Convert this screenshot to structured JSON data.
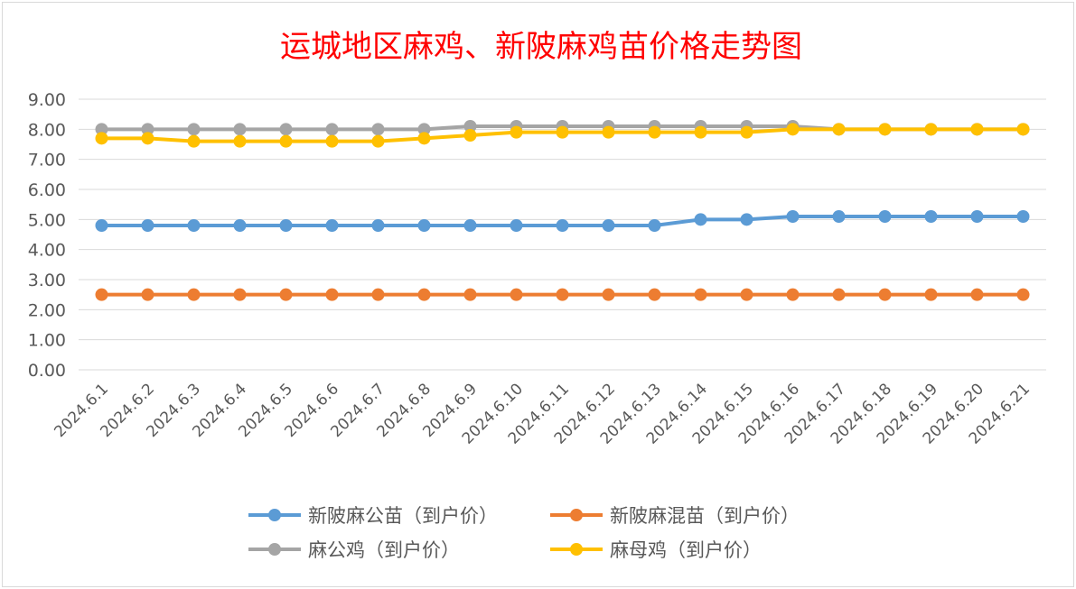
{
  "chart_data": {
    "type": "line",
    "title": "运城地区麻鸡、新陂麻鸡苗价格走势图",
    "xlabel": "",
    "ylabel": "",
    "ylim": [
      0,
      9
    ],
    "yticks": [
      "0.00",
      "1.00",
      "2.00",
      "3.00",
      "4.00",
      "5.00",
      "6.00",
      "7.00",
      "8.00",
      "9.00"
    ],
    "grid": true,
    "legend_position": "bottom",
    "categories": [
      "2024.6.1",
      "2024.6.2",
      "2024.6.3",
      "2024.6.4",
      "2024.6.5",
      "2024.6.6",
      "2024.6.7",
      "2024.6.8",
      "2024.6.9",
      "2024.6.10",
      "2024.6.11",
      "2024.6.12",
      "2024.6.13",
      "2024.6.14",
      "2024.6.15",
      "2024.6.16",
      "2024.6.17",
      "2024.6.18",
      "2024.6.19",
      "2024.6.20",
      "2024.6.21"
    ],
    "series": [
      {
        "name": "新陂麻公苗（到户价）",
        "color": "#5b9bd5",
        "values": [
          4.8,
          4.8,
          4.8,
          4.8,
          4.8,
          4.8,
          4.8,
          4.8,
          4.8,
          4.8,
          4.8,
          4.8,
          4.8,
          5.0,
          5.0,
          5.1,
          5.1,
          5.1,
          5.1,
          5.1,
          5.1
        ]
      },
      {
        "name": "新陂麻混苗（到户价）",
        "color": "#ed7d31",
        "values": [
          2.5,
          2.5,
          2.5,
          2.5,
          2.5,
          2.5,
          2.5,
          2.5,
          2.5,
          2.5,
          2.5,
          2.5,
          2.5,
          2.5,
          2.5,
          2.5,
          2.5,
          2.5,
          2.5,
          2.5,
          2.5
        ]
      },
      {
        "name": "麻公鸡（到户价）",
        "color": "#a5a5a5",
        "values": [
          8.0,
          8.0,
          8.0,
          8.0,
          8.0,
          8.0,
          8.0,
          8.0,
          8.1,
          8.1,
          8.1,
          8.1,
          8.1,
          8.1,
          8.1,
          8.1,
          8.0,
          8.0,
          8.0,
          8.0,
          8.0
        ]
      },
      {
        "name": "麻母鸡（到户价）",
        "color": "#ffc000",
        "values": [
          7.7,
          7.7,
          7.6,
          7.6,
          7.6,
          7.6,
          7.6,
          7.7,
          7.8,
          7.9,
          7.9,
          7.9,
          7.9,
          7.9,
          7.9,
          8.0,
          8.0,
          8.0,
          8.0,
          8.0,
          8.0
        ]
      }
    ]
  }
}
